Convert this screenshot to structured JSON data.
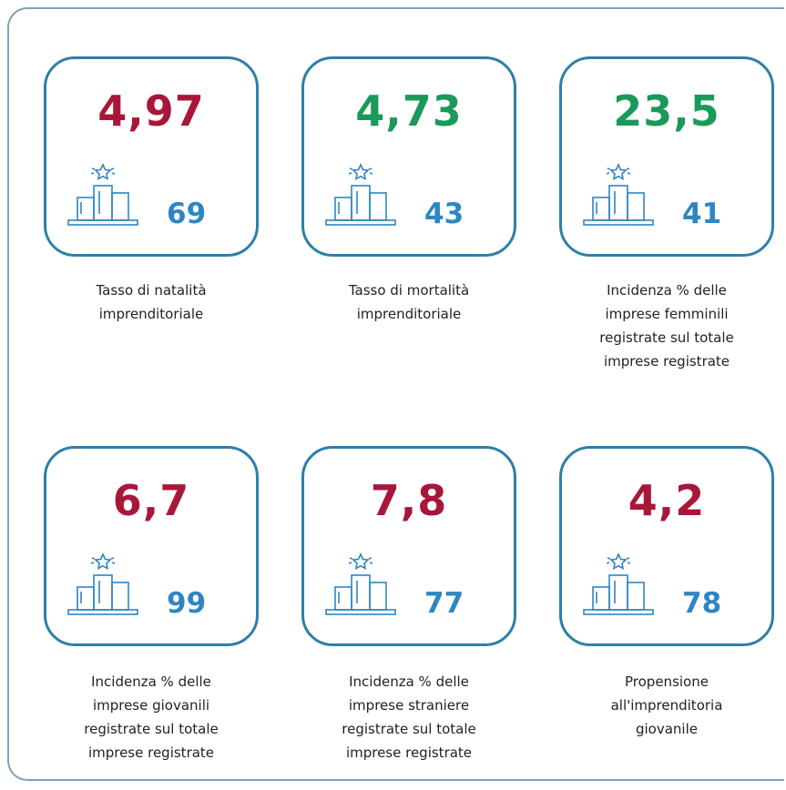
{
  "cards": [
    {
      "value": "4,97",
      "color": "#a8173a",
      "rank": "69",
      "label": [
        "Tasso di natalità",
        "imprenditoriale"
      ]
    },
    {
      "value": "4,73",
      "color": "#1a9a5a",
      "rank": "43",
      "label": [
        "Tasso di mortalità",
        "imprenditoriale"
      ]
    },
    {
      "value": "23,5",
      "color": "#1a9a5a",
      "rank": "41",
      "label": [
        "Incidenza % delle",
        "imprese femminili",
        "registrate sul totale",
        "imprese registrate"
      ]
    },
    {
      "value": "6,7",
      "color": "#a8173a",
      "rank": "99",
      "label": [
        "Incidenza % delle",
        "imprese giovanili",
        "registrate sul totale",
        "imprese registrate"
      ]
    },
    {
      "value": "7,8",
      "color": "#a8173a",
      "rank": "77",
      "label": [
        "Incidenza % delle",
        "imprese straniere",
        "registrate sul totale",
        "imprese registrate"
      ]
    },
    {
      "value": "4,2",
      "color": "#a8173a",
      "rank": "78",
      "label": [
        "Propensione",
        "all'imprenditoria",
        "giovanile"
      ]
    }
  ]
}
